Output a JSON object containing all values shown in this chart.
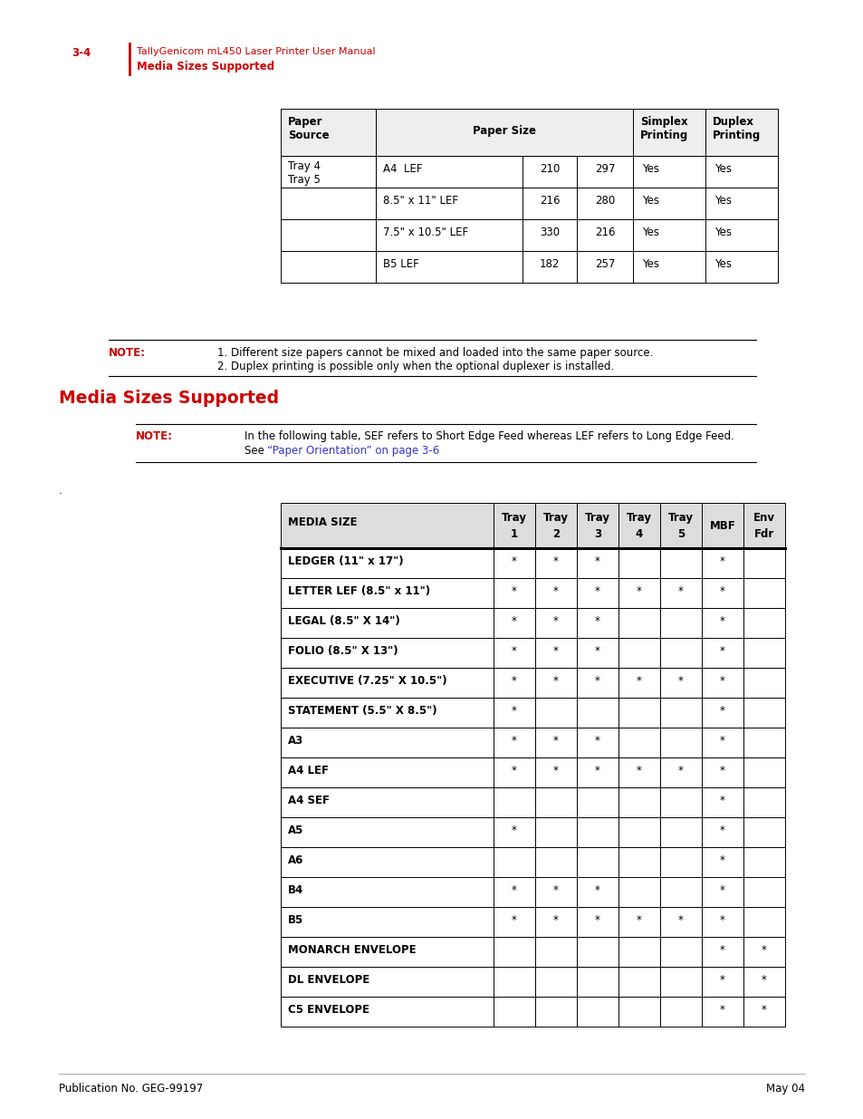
{
  "page_bg": "#ffffff",
  "header_red": "#cc0000",
  "text_black": "#000000",
  "blue_link": "#3333cc",
  "page_number_text": "3-4",
  "manual_title": "TallyGenicom mL450 Laser Printer User Manual",
  "section_title_header": "Media Sizes Supported",
  "top_table_rows": [
    [
      "A4  LEF",
      "210",
      "297",
      "Yes",
      "Yes"
    ],
    [
      "8.5\" x 11\" LEF",
      "216",
      "280",
      "Yes",
      "Yes"
    ],
    [
      "7.5\" x 10.5\" LEF",
      "330",
      "216",
      "Yes",
      "Yes"
    ],
    [
      "B5 LEF",
      "182",
      "257",
      "Yes",
      "Yes"
    ]
  ],
  "note1_label": "NOTE:",
  "note1_line1": "1. Different size papers cannot be mixed and loaded into the same paper source.",
  "note1_line2": "2. Duplex printing is possible only when the optional duplexer is installed.",
  "section2_title": "Media Sizes Supported",
  "note2_label": "NOTE:",
  "note2_line1": "In the following table, SEF refers to Short Edge Feed whereas LEF refers to Long Edge Feed.",
  "note2_line2_plain": "See ",
  "note2_line2_link": "“Paper Orientation” on page 3-6",
  "main_table_headers": [
    "MEDIA SIZE",
    "Tray\n1",
    "Tray\n2",
    "Tray\n3",
    "Tray\n4",
    "Tray\n5",
    "MBF",
    "Env\nFdr"
  ],
  "main_table_rows": [
    [
      "LEDGER (11\" x 17\")",
      "*",
      "*",
      "*",
      "",
      "",
      "*",
      ""
    ],
    [
      "LETTER LEF (8.5\" x 11\")",
      "*",
      "*",
      "*",
      "*",
      "*",
      "*",
      ""
    ],
    [
      "LEGAL (8.5\" X 14\")",
      "*",
      "*",
      "*",
      "",
      "",
      "*",
      ""
    ],
    [
      "FOLIO (8.5\" X 13\")",
      "*",
      "*",
      "*",
      "",
      "",
      "*",
      ""
    ],
    [
      "EXECUTIVE (7.25\" X 10.5\")",
      "*",
      "*",
      "*",
      "*",
      "*",
      "*",
      ""
    ],
    [
      "STATEMENT (5.5\" X 8.5\")",
      "*",
      "",
      "",
      "",
      "",
      "*",
      ""
    ],
    [
      "A3",
      "*",
      "*",
      "*",
      "",
      "",
      "*",
      ""
    ],
    [
      "A4 LEF",
      "*",
      "*",
      "*",
      "*",
      "*",
      "*",
      ""
    ],
    [
      "A4 SEF",
      "",
      "",
      "",
      "",
      "",
      "*",
      ""
    ],
    [
      "A5",
      "*",
      "",
      "",
      "",
      "",
      "*",
      ""
    ],
    [
      "A6",
      "",
      "",
      "",
      "",
      "",
      "*",
      ""
    ],
    [
      "B4",
      "*",
      "*",
      "*",
      "",
      "",
      "*",
      ""
    ],
    [
      "B5",
      "*",
      "*",
      "*",
      "*",
      "*",
      "*",
      ""
    ],
    [
      "MONARCH ENVELOPE",
      "",
      "",
      "",
      "",
      "",
      "*",
      "*"
    ],
    [
      "DL ENVELOPE",
      "",
      "",
      "",
      "",
      "",
      "*",
      "*"
    ],
    [
      "C5 ENVELOPE",
      "",
      "",
      "",
      "",
      "",
      "*",
      "*"
    ]
  ],
  "footer_left": "Publication No. GEG-99197",
  "footer_right": "May 04"
}
